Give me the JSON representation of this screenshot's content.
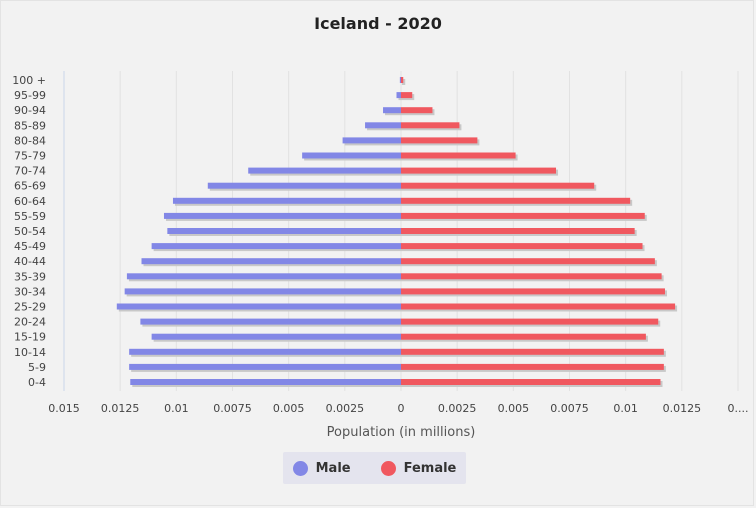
{
  "chart_data": {
    "type": "bar",
    "title": "Iceland - 2020",
    "xlabel": "Population (in millions)",
    "categories": [
      "0-4",
      "5-9",
      "10-14",
      "15-19",
      "20-24",
      "25-29",
      "30-34",
      "35-39",
      "40-44",
      "45-49",
      "50-54",
      "55-59",
      "60-64",
      "65-69",
      "70-74",
      "75-79",
      "80-84",
      "85-89",
      "90-94",
      "95-99",
      "100 +"
    ],
    "x_tick_labels": [
      "0.015",
      "0.0125",
      "0.01",
      "0.0075",
      "0.005",
      "0.0025",
      "0",
      "0.0025",
      "0.005",
      "0.0075",
      "0.01",
      "0.0125",
      "0...."
    ],
    "xlim": [
      -0.015,
      0.015
    ],
    "series": [
      {
        "name": "Male",
        "color": "#8287e6",
        "values": [
          -0.01205,
          -0.0121,
          -0.0121,
          -0.0111,
          -0.0116,
          -0.01265,
          -0.0123,
          -0.0122,
          -0.01155,
          -0.0111,
          -0.0104,
          -0.01055,
          -0.01015,
          -0.0086,
          -0.0068,
          -0.0044,
          -0.0026,
          -0.0016,
          -0.0008,
          -0.0002,
          -5e-05
        ]
      },
      {
        "name": "Female",
        "color": "#f0585f",
        "values": [
          0.01155,
          0.0117,
          0.0117,
          0.0109,
          0.01145,
          0.0122,
          0.01175,
          0.0116,
          0.0113,
          0.01075,
          0.0104,
          0.01085,
          0.0102,
          0.0086,
          0.0069,
          0.0051,
          0.0034,
          0.0026,
          0.0014,
          0.0005,
          0.0001
        ]
      }
    ],
    "grid": true,
    "legend_position": "bottom-center"
  }
}
